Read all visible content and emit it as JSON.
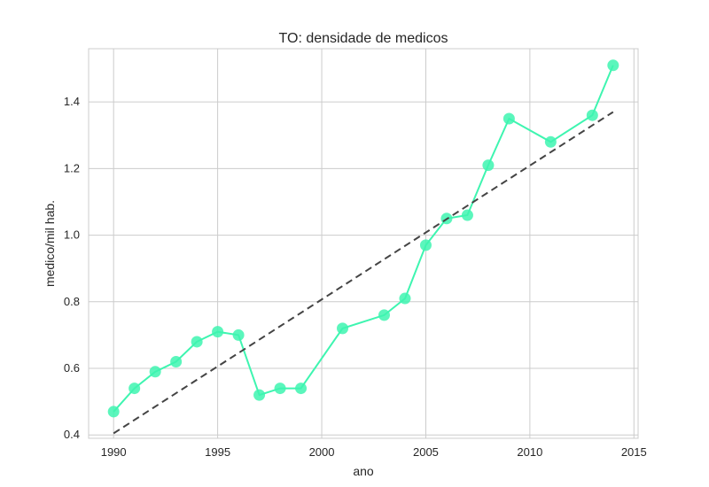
{
  "chart_data": {
    "type": "line",
    "title": "TO: densidade de medicos",
    "xlabel": "ano",
    "ylabel": "medico/mil hab.",
    "xlim": [
      1988.8,
      2015.2
    ],
    "ylim": [
      0.39,
      1.56
    ],
    "xticks": [
      1990,
      1995,
      2000,
      2005,
      2010,
      2015
    ],
    "yticks": [
      0.4,
      0.6,
      0.8,
      1.0,
      1.2,
      1.4
    ],
    "ytick_labels": [
      "0.4",
      "0.6",
      "0.8",
      "1.0",
      "1.2",
      "1.4"
    ],
    "grid": true,
    "series": [
      {
        "kind": "line-markers",
        "color": "#3ef5b0",
        "x": [
          1990,
          1991,
          1992,
          1993,
          1994,
          1995,
          1996,
          1997,
          1998,
          1999,
          2001,
          2003,
          2004,
          2005,
          2006,
          2007,
          2008,
          2009,
          2011,
          2013,
          2014
        ],
        "y": [
          0.47,
          0.54,
          0.59,
          0.62,
          0.68,
          0.71,
          0.7,
          0.52,
          0.54,
          0.54,
          0.72,
          0.76,
          0.81,
          0.97,
          1.05,
          1.06,
          1.21,
          1.35,
          1.28,
          1.36,
          1.51
        ]
      },
      {
        "kind": "trend-dashed",
        "color": "#444444",
        "x": [
          1990,
          2014
        ],
        "y": [
          0.405,
          1.37
        ]
      }
    ]
  }
}
